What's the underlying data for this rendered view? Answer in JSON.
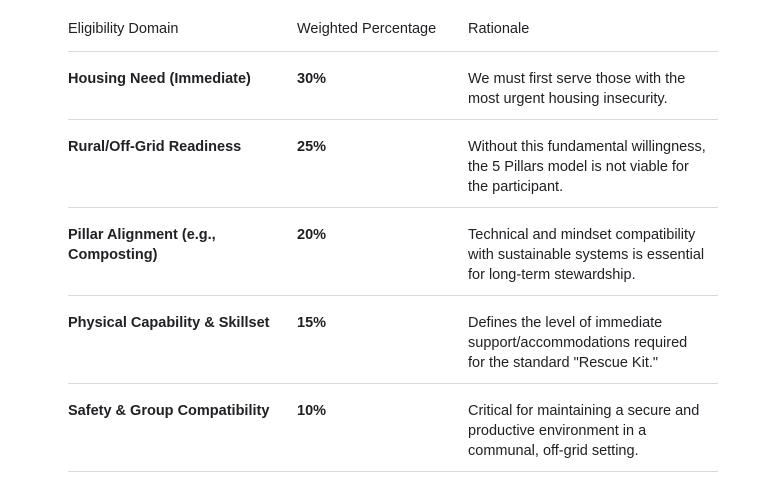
{
  "colors": {
    "background": "#ffffff",
    "text": "#202124",
    "divider": "#d9d9d9"
  },
  "table": {
    "columns": [
      {
        "label": "Eligibility Domain"
      },
      {
        "label": "Weighted Percentage"
      },
      {
        "label": "Rationale"
      }
    ],
    "rows": [
      {
        "domain": "Housing Need (Immediate)",
        "weight": "30%",
        "rationale": "We must first serve those with the\nmost urgent housing insecurity."
      },
      {
        "domain": "Rural/Off-Grid Readiness",
        "weight": "25%",
        "rationale": "Without this fundamental willingness,\nthe 5 Pillars model is not viable for\nthe participant."
      },
      {
        "domain": "Pillar Alignment (e.g.,\nComposting)",
        "weight": "20%",
        "rationale": "Technical and mindset compatibility\nwith sustainable systems is essential\nfor long-term stewardship."
      },
      {
        "domain": "Physical Capability & Skillset",
        "weight": "15%",
        "rationale": "Defines the level of immediate\nsupport/accommodations required\nfor the standard \"Rescue Kit.\""
      },
      {
        "domain": "Safety & Group Compatibility",
        "weight": "10%",
        "rationale": "Critical for maintaining a secure and\nproductive environment in a\ncommunal, off-grid setting."
      }
    ]
  }
}
